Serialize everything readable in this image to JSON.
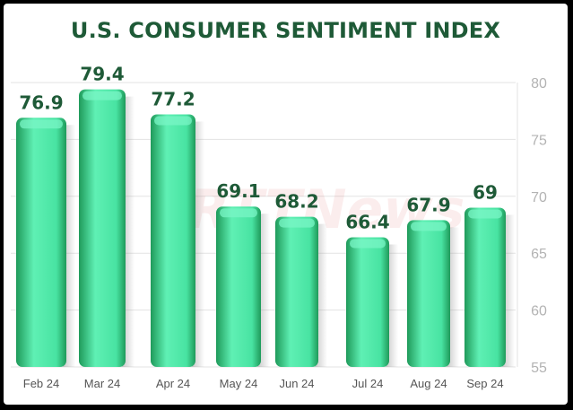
{
  "chart_data": {
    "type": "bar",
    "title": "U.S. CONSUMER SENTIMENT INDEX",
    "categories": [
      "Feb 24",
      "Mar 24",
      "Apr 24",
      "May 24",
      "Jun 24",
      "Jul 24",
      "Aug 24",
      "Sep 24"
    ],
    "values": [
      76.9,
      79.4,
      77.2,
      69.1,
      68.2,
      66.4,
      67.9,
      69
    ],
    "value_labels": [
      "76.9",
      "79.4",
      "77.2",
      "69.1",
      "68.2",
      "66.4",
      "67.9",
      "69"
    ],
    "ylim": [
      55,
      80
    ],
    "yticks": [
      55,
      60,
      65,
      70,
      75,
      80
    ],
    "grid": true,
    "y_axis_side": "right",
    "xlabel": "",
    "ylabel": "",
    "watermark": "RTTNews",
    "colors": {
      "bar_light": "#5ff0b4",
      "bar_dark": "#1f9a5a",
      "bar_top": "#7af5c6",
      "title": "#1e5a37",
      "value_label": "#1e5a37",
      "grid": "#e3e3e3",
      "tick": "#b3b3b3"
    }
  }
}
